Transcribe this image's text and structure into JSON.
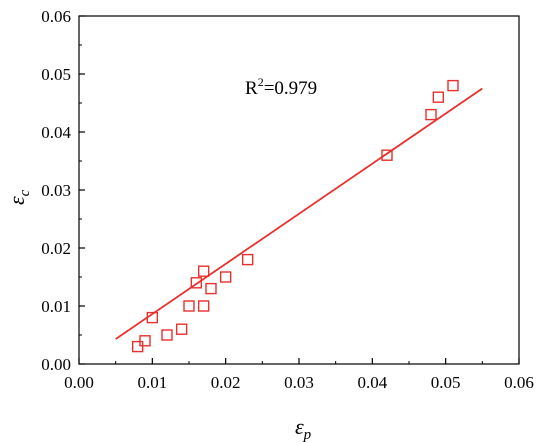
{
  "chart_data": {
    "type": "scatter",
    "xlabel": "ε",
    "xlabel_sub": "p",
    "ylabel": "ε",
    "ylabel_sub": "c",
    "xlim": [
      0.0,
      0.06
    ],
    "ylim": [
      0.0,
      0.06
    ],
    "x_ticks": [
      "0.00",
      "0.01",
      "0.02",
      "0.03",
      "0.04",
      "0.05",
      "0.06"
    ],
    "y_ticks": [
      "0.00",
      "0.01",
      "0.02",
      "0.03",
      "0.04",
      "0.05",
      "0.06"
    ],
    "grid": false,
    "marker_color": "#e8302c",
    "fit_color": "#e8302c",
    "annotation": {
      "text_prefix": "R",
      "superscript": "2",
      "text_suffix": "=0.979"
    },
    "points": [
      {
        "x": 0.008,
        "y": 0.003
      },
      {
        "x": 0.009,
        "y": 0.004
      },
      {
        "x": 0.01,
        "y": 0.008
      },
      {
        "x": 0.012,
        "y": 0.005
      },
      {
        "x": 0.014,
        "y": 0.006
      },
      {
        "x": 0.015,
        "y": 0.01
      },
      {
        "x": 0.016,
        "y": 0.014
      },
      {
        "x": 0.017,
        "y": 0.016
      },
      {
        "x": 0.017,
        "y": 0.01
      },
      {
        "x": 0.018,
        "y": 0.013
      },
      {
        "x": 0.02,
        "y": 0.015
      },
      {
        "x": 0.023,
        "y": 0.018
      },
      {
        "x": 0.042,
        "y": 0.036
      },
      {
        "x": 0.048,
        "y": 0.043
      },
      {
        "x": 0.049,
        "y": 0.046
      },
      {
        "x": 0.051,
        "y": 0.048
      }
    ],
    "fit_line": [
      {
        "x": 0.005,
        "y": 0.0043
      },
      {
        "x": 0.055,
        "y": 0.0475
      }
    ]
  }
}
